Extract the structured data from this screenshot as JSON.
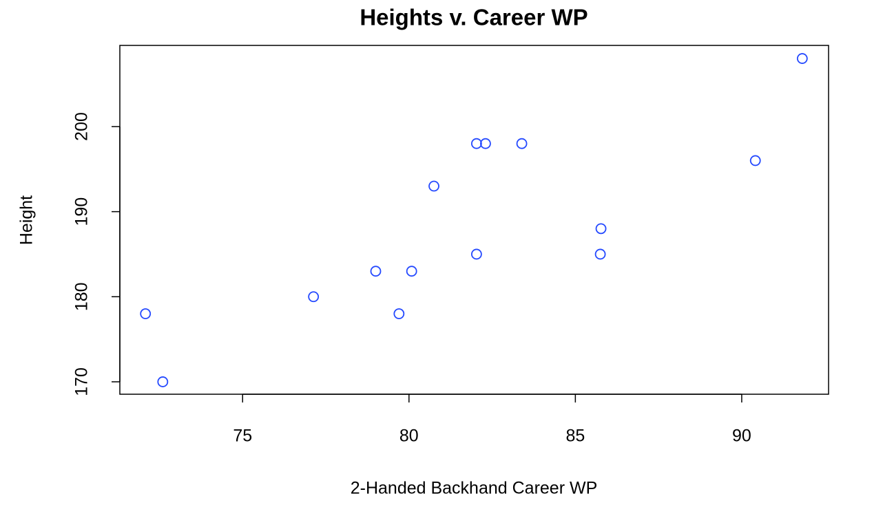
{
  "chart_data": {
    "type": "scatter",
    "title": "Heights v. Career WP",
    "x_label": "2-Handed Backhand Career WP",
    "y_label": "Height",
    "color": "#2449ff",
    "x": [
      72.08,
      72.6,
      77.13,
      79.0,
      79.7,
      80.08,
      80.75,
      82.03,
      82.3,
      82.03,
      83.39,
      85.75,
      85.77,
      90.41,
      91.82
    ],
    "values": [
      178,
      170,
      180,
      183,
      178,
      183,
      193,
      198,
      198,
      185,
      198,
      185,
      188,
      196,
      208
    ],
    "xlim": [
      71.31,
      92.61
    ],
    "xticks": [
      75,
      80,
      85,
      90
    ],
    "ylim": [
      168.54,
      209.54
    ],
    "yticks": [
      170,
      180,
      190,
      200
    ]
  }
}
